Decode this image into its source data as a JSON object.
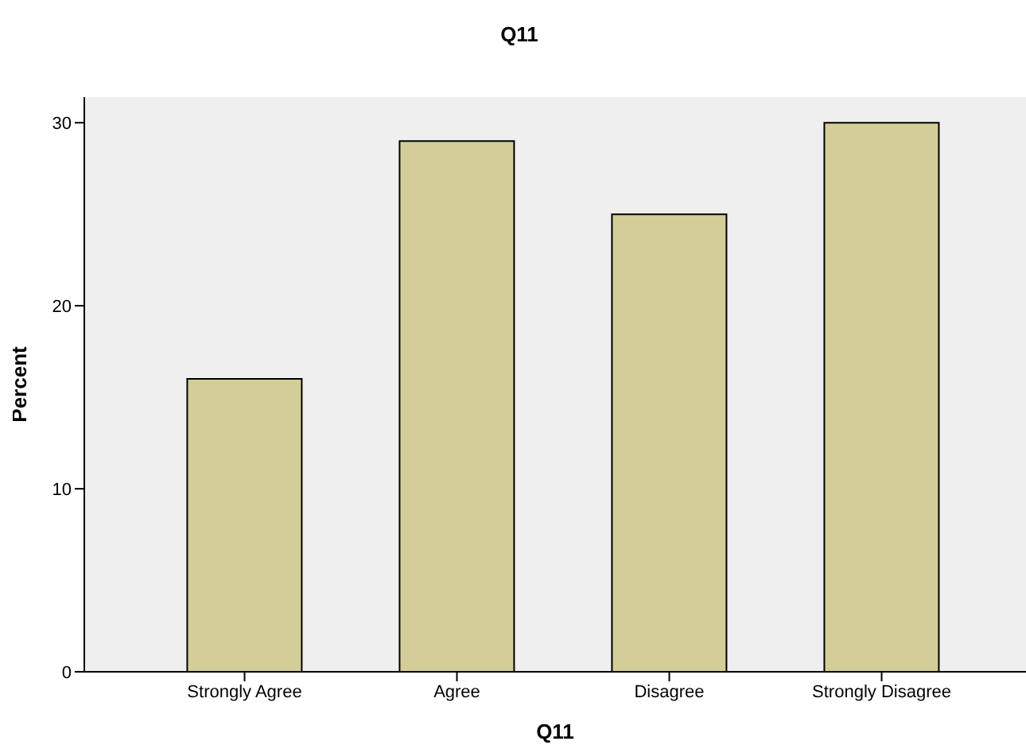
{
  "chart_data": {
    "type": "bar",
    "title": "Q11",
    "xlabel": "Q11",
    "ylabel": "Percent",
    "categories": [
      "Strongly Agree",
      "Agree",
      "Disagree",
      "Strongly Disagree"
    ],
    "values": [
      16,
      29,
      25,
      30
    ],
    "color": "#d3ce98",
    "ylim": [
      0,
      31.4
    ],
    "yticks": [
      0,
      10,
      20,
      30
    ],
    "grid": false,
    "legend": false
  }
}
